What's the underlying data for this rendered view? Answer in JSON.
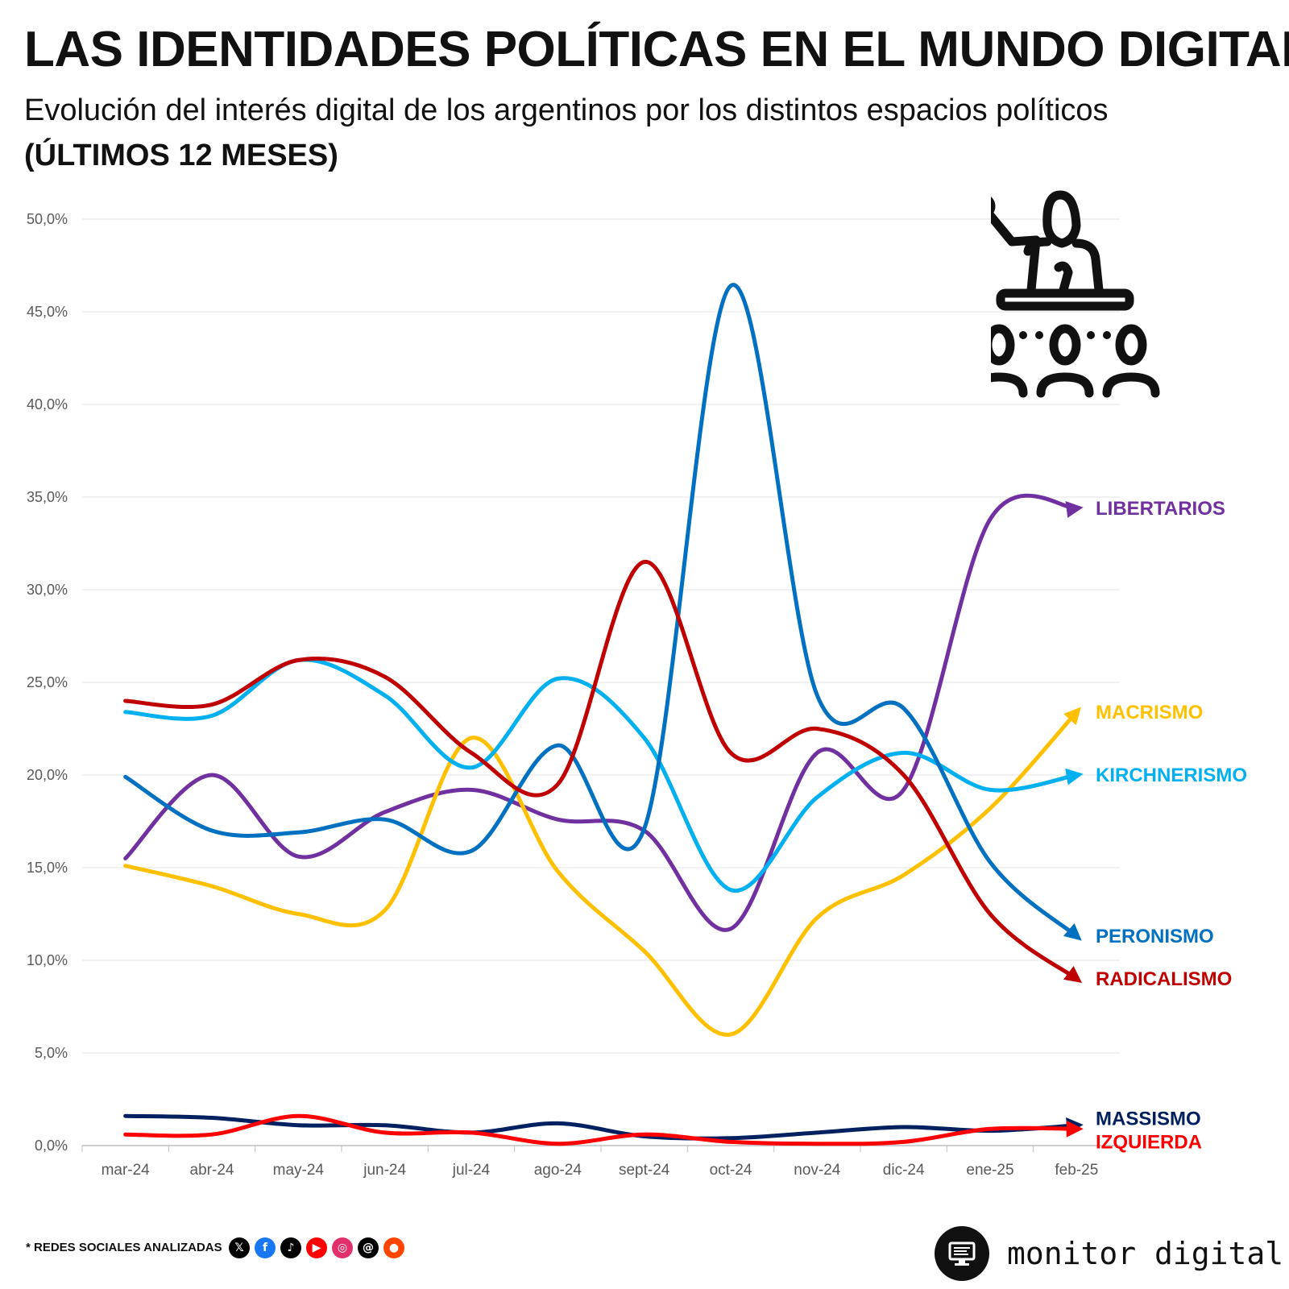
{
  "header": {
    "title": "LAS IDENTIDADES POLÍTICAS EN EL MUNDO DIGITAL",
    "subtitle": "Evolución del interés digital de los argentinos por los distintos espacios políticos",
    "period": "(ÚLTIMOS 12 MESES)"
  },
  "chart_data": {
    "type": "line",
    "categories": [
      "mar-24",
      "abr-24",
      "may-24",
      "jun-24",
      "jul-24",
      "ago-24",
      "sept-24",
      "oct-24",
      "nov-24",
      "dic-24",
      "ene-25",
      "feb-25"
    ],
    "y_ticks": [
      "0,0%",
      "5,0%",
      "10,0%",
      "15,0%",
      "20,0%",
      "25,0%",
      "30,0%",
      "35,0%",
      "40,0%",
      "45,0%",
      "50,0%"
    ],
    "ylim": [
      0,
      50
    ],
    "grid": true,
    "legend": "end-of-line labels",
    "series": [
      {
        "name": "LIBERTARIOS",
        "color": "#7030A0",
        "values": [
          15.5,
          20.0,
          15.6,
          18.0,
          19.2,
          17.6,
          17.0,
          11.7,
          21.2,
          19.2,
          33.8,
          34.4
        ]
      },
      {
        "name": "MACRISMO",
        "color": "#FFC000",
        "values": [
          15.1,
          14.0,
          12.5,
          12.7,
          22.0,
          14.8,
          10.5,
          6.0,
          12.3,
          14.6,
          18.2,
          23.4
        ]
      },
      {
        "name": "KIRCHNERISMO",
        "color": "#00B0F0",
        "values": [
          23.4,
          23.2,
          26.2,
          24.3,
          20.4,
          25.2,
          22.0,
          13.8,
          18.8,
          21.2,
          19.2,
          20.0
        ]
      },
      {
        "name": "PERONISMO",
        "color": "#0070C0",
        "values": [
          19.9,
          17.0,
          16.9,
          17.6,
          15.9,
          21.6,
          17.1,
          46.4,
          24.3,
          23.6,
          15.3,
          11.3
        ]
      },
      {
        "name": "RADICALISMO",
        "color": "#C00000",
        "values": [
          24.0,
          23.8,
          26.2,
          25.3,
          21.2,
          19.5,
          31.5,
          21.2,
          22.5,
          20.0,
          12.5,
          9.0
        ]
      },
      {
        "name": "MASSISMO",
        "color": "#002060",
        "values": [
          1.6,
          1.5,
          1.1,
          1.1,
          0.7,
          1.2,
          0.5,
          0.4,
          0.7,
          1.0,
          0.8,
          1.1
        ]
      },
      {
        "name": "IZQUIERDA",
        "color": "#FF0000",
        "values": [
          0.6,
          0.6,
          1.6,
          0.7,
          0.7,
          0.1,
          0.6,
          0.2,
          0.1,
          0.2,
          0.9,
          0.9
        ]
      }
    ]
  },
  "footer": {
    "note": "* REDES SOCIALES ANALIZADAS",
    "socials": [
      {
        "icon": "x-icon",
        "glyph": "𝕏",
        "color": "#000000"
      },
      {
        "icon": "facebook-icon",
        "glyph": "f",
        "color": "#1877F2"
      },
      {
        "icon": "tiktok-icon",
        "glyph": "♪",
        "color": "#000000"
      },
      {
        "icon": "youtube-icon",
        "glyph": "▶",
        "color": "#FF0000"
      },
      {
        "icon": "instagram-icon",
        "glyph": "◎",
        "color": "#E1306C"
      },
      {
        "icon": "threads-icon",
        "glyph": "@",
        "color": "#000000"
      },
      {
        "icon": "reddit-icon",
        "glyph": "●",
        "color": "#FF4500"
      }
    ],
    "brand": "monitor digital"
  }
}
